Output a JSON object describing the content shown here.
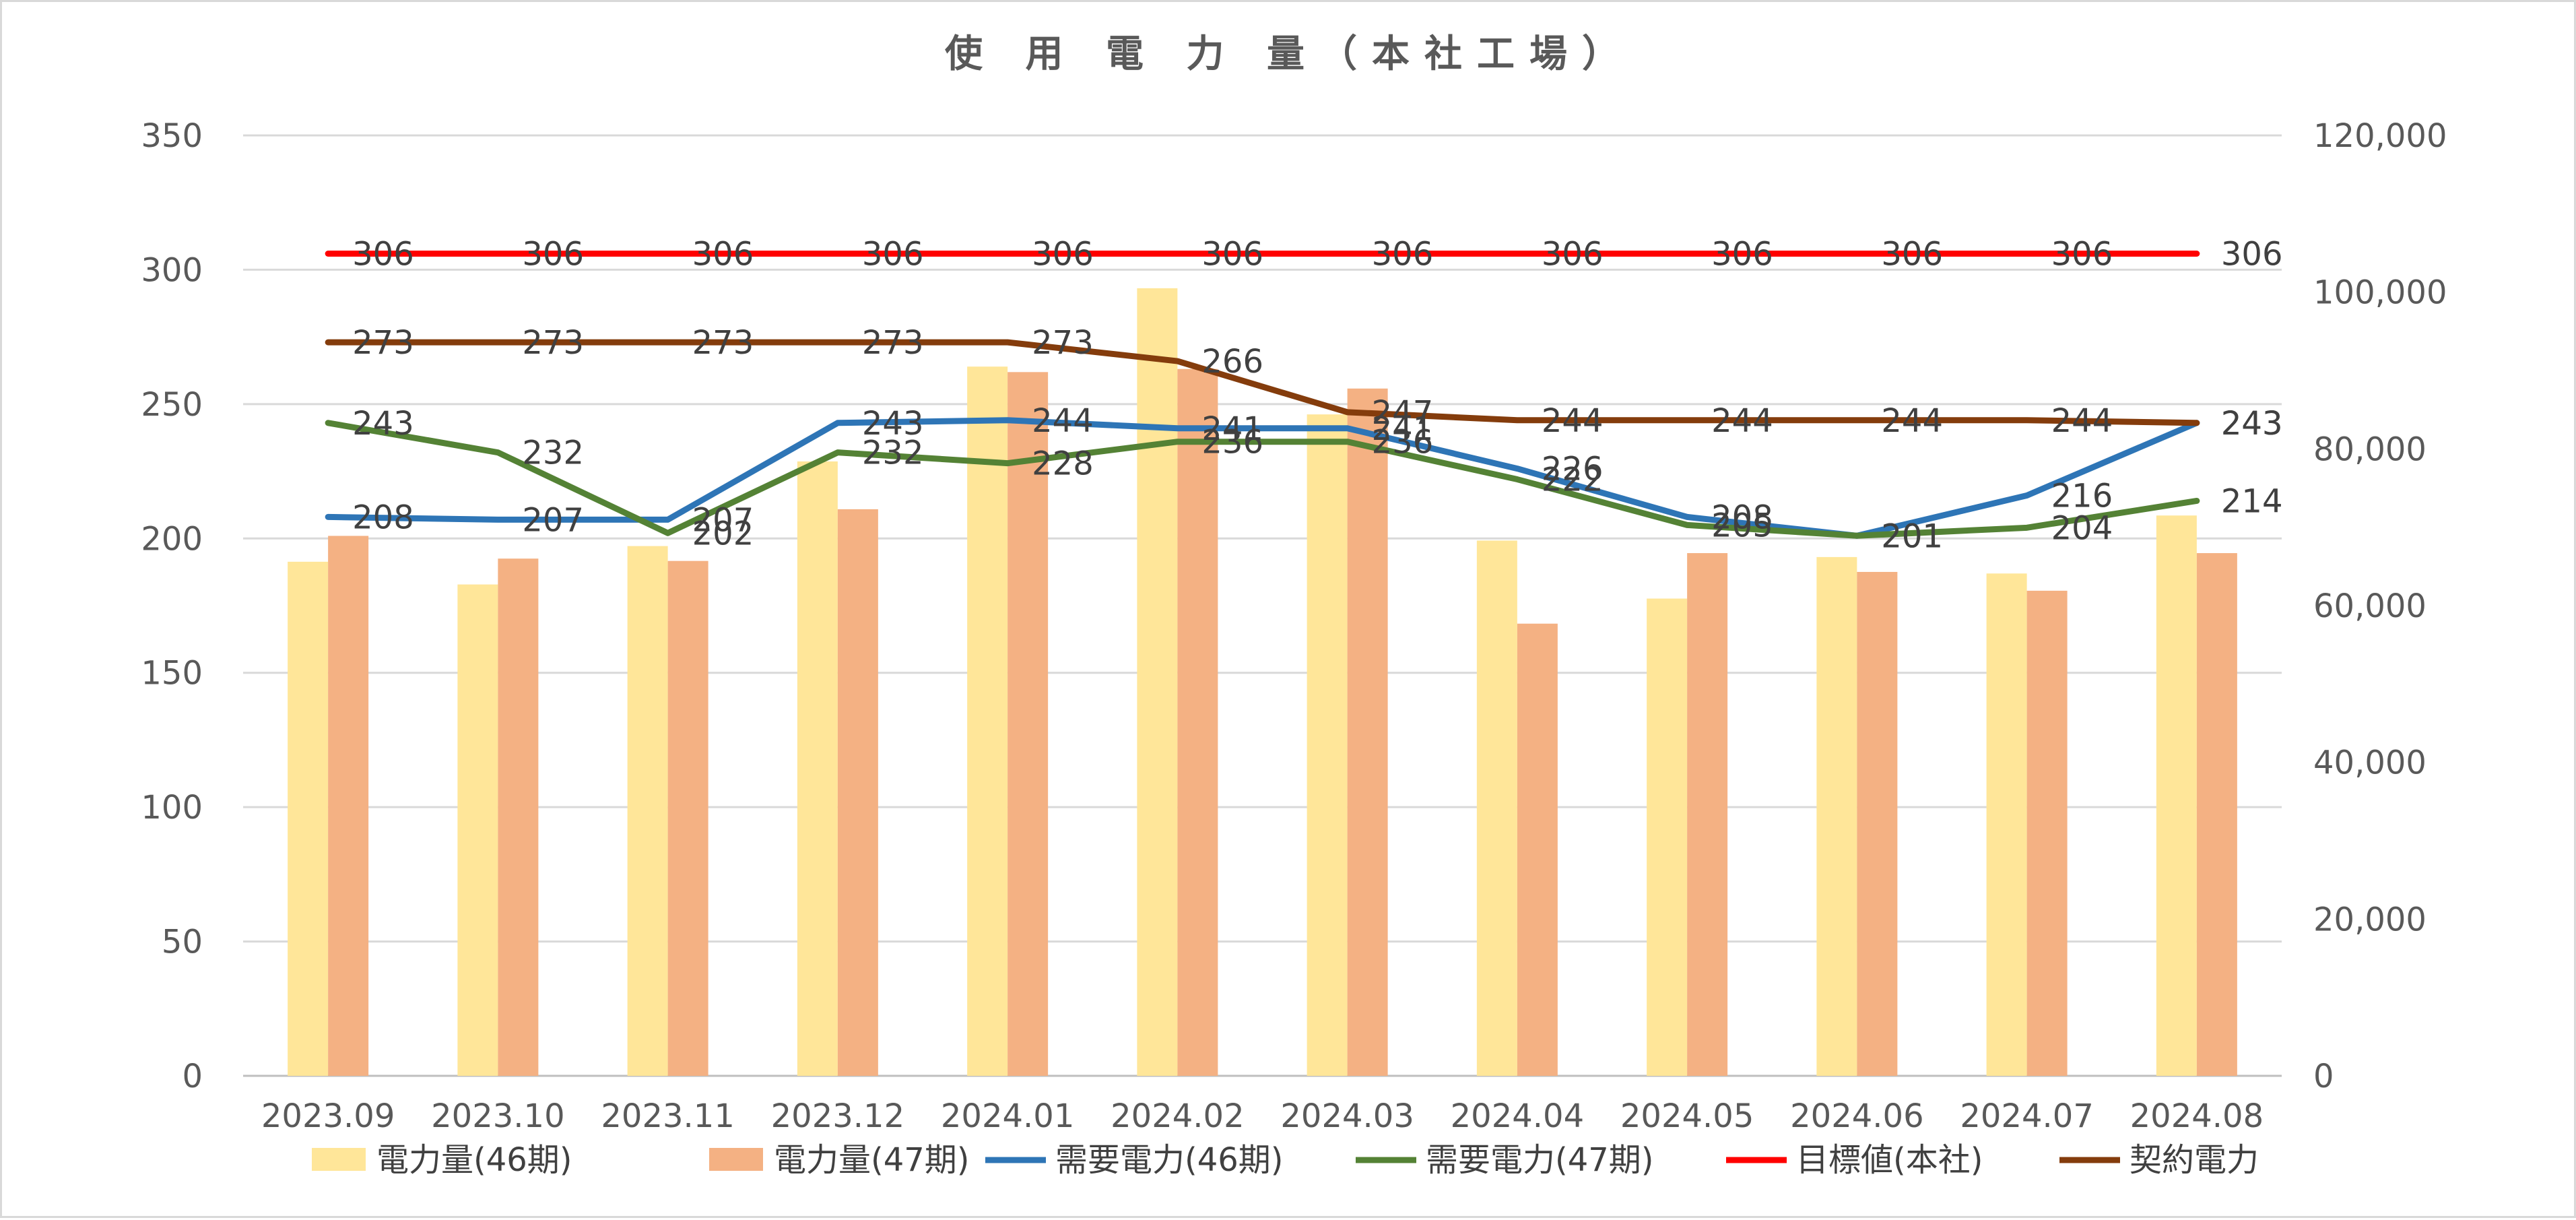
{
  "chart_data": {
    "type": "bar",
    "title": "使 用 電 力 量（本社工場）",
    "categories": [
      "2023.09",
      "2023.10",
      "2023.11",
      "2023.12",
      "2024.01",
      "2024.02",
      "2024.03",
      "2024.04",
      "2024.05",
      "2024.06",
      "2024.07",
      "2024.08"
    ],
    "y_left": {
      "min": 0,
      "max": 350,
      "ticks": [
        "0",
        "50",
        "100",
        "150",
        "200",
        "250",
        "300",
        "350"
      ]
    },
    "y_right": {
      "min": 0,
      "max": 120000,
      "ticks": [
        "0",
        "20,000",
        "40,000",
        "60,000",
        "80,000",
        "100,000",
        "120,000"
      ]
    },
    "gridlines": true,
    "legend_position": "bottom",
    "bar_series": [
      {
        "name": "電力量(46期)",
        "axis": "right",
        "color": "#ffe699",
        "values": [
          65600,
          62700,
          67600,
          78400,
          90500,
          100500,
          84400,
          68300,
          60900,
          66200,
          64100,
          71500
        ]
      },
      {
        "name": "電力量(47期)",
        "axis": "right",
        "color": "#f4b183",
        "values": [
          68900,
          66000,
          65700,
          72300,
          89800,
          90200,
          87700,
          57700,
          66700,
          64300,
          61900,
          66700
        ]
      }
    ],
    "line_series": [
      {
        "name": "需要電力(46期)",
        "axis": "left",
        "color": "#2e75b6",
        "values": [
          208,
          207,
          207,
          243,
          244,
          241,
          241,
          226,
          208,
          201,
          216,
          243
        ],
        "labels": [
          "208",
          "207",
          "207",
          "243",
          "244",
          "241",
          "241",
          "226",
          "208",
          "201",
          "216",
          "243"
        ]
      },
      {
        "name": "需要電力(47期)",
        "axis": "left",
        "color": "#548235",
        "values": [
          243,
          232,
          202,
          232,
          228,
          236,
          236,
          222,
          205,
          201,
          204,
          214
        ],
        "labels": [
          "243",
          "232",
          "202",
          "232",
          "228",
          "236",
          "236",
          "222",
          "205",
          "201",
          "204",
          "214"
        ]
      },
      {
        "name": "目標値(本社)",
        "axis": "left",
        "color": "#ff0000",
        "values": [
          306,
          306,
          306,
          306,
          306,
          306,
          306,
          306,
          306,
          306,
          306,
          306
        ],
        "labels": [
          "306",
          "306",
          "306",
          "306",
          "306",
          "306",
          "306",
          "306",
          "306",
          "306",
          "306",
          "306"
        ]
      },
      {
        "name": "契約電力",
        "axis": "left",
        "color": "#843c0c",
        "values": [
          273,
          273,
          273,
          273,
          273,
          266,
          247,
          244,
          244,
          244,
          244,
          243
        ],
        "labels": [
          "273",
          "273",
          "273",
          "273",
          "273",
          "266",
          "247",
          "244",
          "244",
          "244",
          "244",
          "243"
        ]
      }
    ]
  }
}
